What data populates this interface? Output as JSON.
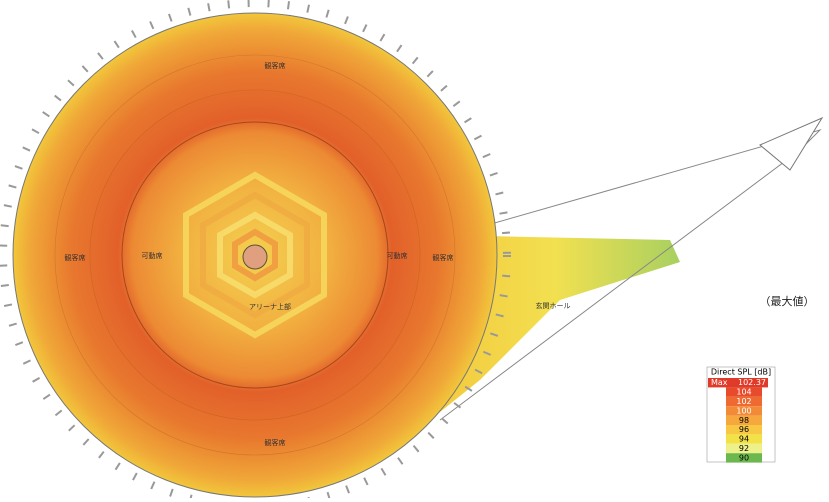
{
  "labels": {
    "top_seats": "観客席",
    "bottom_seats": "観客席",
    "left_seats": "観客席",
    "right_seats": "観客席",
    "left_movable": "可動席",
    "right_movable": "可動席",
    "arena": "アリーナ上部",
    "entrance": "玄関ホール",
    "note": "（最大値）"
  },
  "legend": {
    "title": "Direct SPL [dB]",
    "max_label": "Max",
    "max_value": "102.37",
    "max_color": "#e03a2a",
    "levels": [
      {
        "value": "104",
        "color": "#e84a2c"
      },
      {
        "value": "102",
        "color": "#ee6a30"
      },
      {
        "value": "100",
        "color": "#f28a38"
      },
      {
        "value": "98",
        "color": "#f6a83e"
      },
      {
        "value": "96",
        "color": "#f8c844"
      },
      {
        "value": "94",
        "color": "#f2e248"
      },
      {
        "value": "92",
        "color": "#eef08a"
      },
      {
        "value": "90",
        "color": "#6cb84e"
      }
    ]
  }
}
